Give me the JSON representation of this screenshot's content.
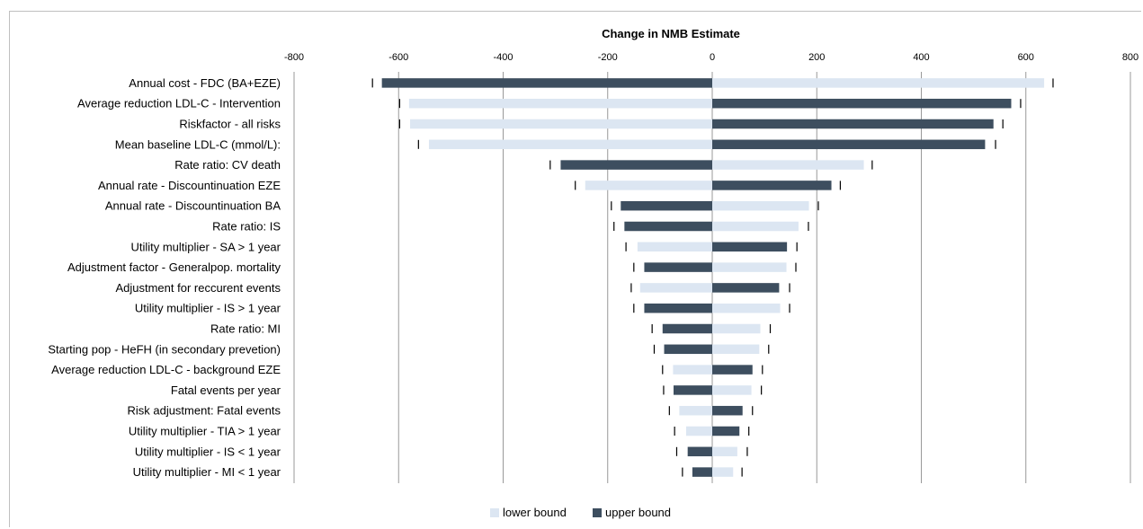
{
  "chart_data": {
    "type": "bar",
    "orientation": "horizontal",
    "title": "Change in NMB Estimate",
    "xlim": [
      -800,
      800
    ],
    "xticks": [
      -800,
      -600,
      -400,
      -200,
      0,
      200,
      400,
      600,
      800
    ],
    "grid": true,
    "legend_position": "bottom",
    "colors": {
      "lower_bound": "#dce6f2",
      "upper_bound": "#3d4e5f",
      "grid": "#999999"
    },
    "categories": [
      "Annual cost - FDC (BA+EZE)",
      "Average reduction LDL-C - Intervention",
      "Riskfactor - all risks",
      "Mean baseline LDL-C (mmol/L):",
      "Rate ratio: CV death",
      "Annual rate - Discountinuation EZE",
      "Annual rate - Discountinuation BA",
      "Rate ratio: IS",
      "Utility multiplier - SA > 1 year",
      "Adjustment factor - Generalpop. mortality",
      "Adjustment for reccurent events",
      "Utility multiplier - IS > 1 year",
      "Rate ratio: MI",
      "Starting pop - HeFH (in secondary prevetion)",
      "Average reduction LDL-C - background EZE",
      "Fatal events per year",
      "Risk adjustment: Fatal events",
      "Utility multiplier - TIA > 1 year",
      "Utility multiplier - IS < 1 year",
      "Utility multiplier - MI < 1 year"
    ],
    "series": [
      {
        "name": "lower bound",
        "values": [
          635,
          -580,
          -578,
          -542,
          290,
          -243,
          185,
          165,
          -143,
          142,
          -138,
          130,
          92,
          90,
          -75,
          75,
          -63,
          -50,
          48,
          40
        ]
      },
      {
        "name": "upper bound",
        "values": [
          -632,
          572,
          538,
          522,
          -290,
          228,
          -175,
          -168,
          143,
          -130,
          128,
          -130,
          -95,
          -92,
          77,
          -74,
          58,
          52,
          -47,
          -38
        ]
      }
    ],
    "markers": [
      [
        -650,
        652
      ],
      [
        -598,
        590
      ],
      [
        -598,
        556
      ],
      [
        -562,
        542
      ],
      [
        -310,
        306
      ],
      [
        -262,
        245
      ],
      [
        -193,
        203
      ],
      [
        -188,
        184
      ],
      [
        -165,
        162
      ],
      [
        -150,
        160
      ],
      [
        -155,
        148
      ],
      [
        -150,
        148
      ],
      [
        -115,
        111
      ],
      [
        -111,
        108
      ],
      [
        -95,
        96
      ],
      [
        -93,
        94
      ],
      [
        -82,
        77
      ],
      [
        -72,
        70
      ],
      [
        -68,
        67
      ],
      [
        -57,
        57
      ]
    ]
  }
}
